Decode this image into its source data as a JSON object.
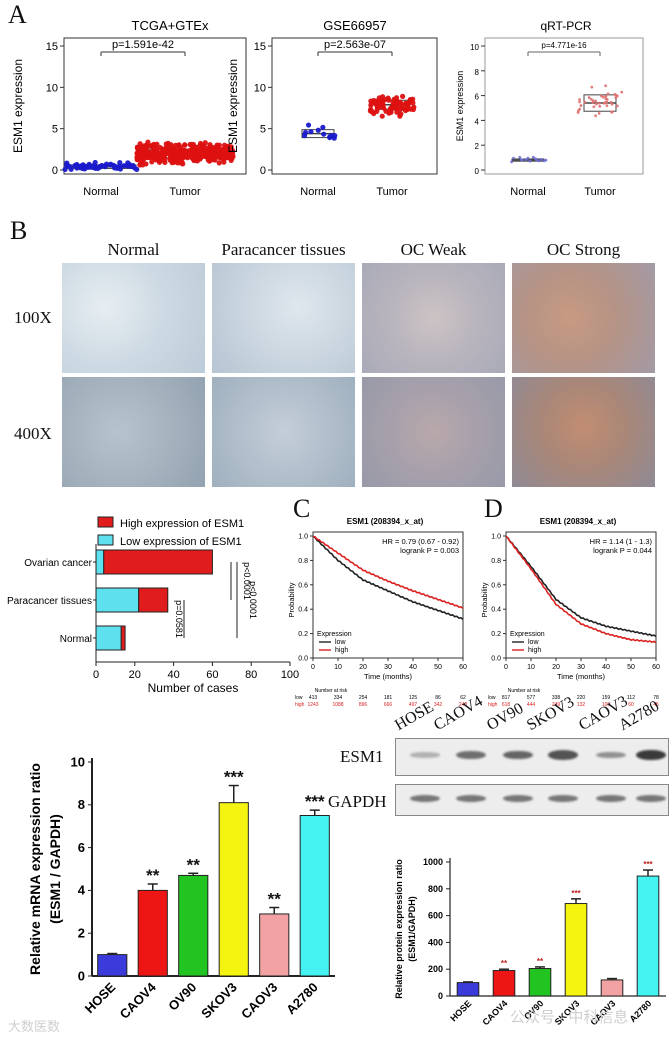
{
  "panel_letters": {
    "A": "A",
    "B": "B",
    "C": "C",
    "D": "D"
  },
  "panel_a": {
    "ylabel": "ESM1 expression",
    "plots": [
      {
        "title": "TCGA+GTEx",
        "pval": "p=1.591e-42",
        "ymax": 15,
        "ticks": [
          "0",
          "5",
          "10",
          "15"
        ],
        "groups": [
          "Normal",
          "Tumor"
        ],
        "color": "#1a1acc",
        "tumor_color": "#dd1111",
        "normal_median": 0.4,
        "tumor_median": 2.0
      },
      {
        "title": "GSE66957",
        "pval": "p=2.563e-07",
        "ymax": 15,
        "ticks": [
          "0",
          "5",
          "10",
          "15"
        ],
        "groups": [
          "Normal",
          "Tumor"
        ],
        "color": "#1a1acc",
        "tumor_color": "#dd1111",
        "normal_median": 4.4,
        "tumor_median": 7.9
      },
      {
        "title": "qRT-PCR",
        "pval": "p=4.771e-16",
        "ymax": 10,
        "ticks": [
          "0",
          "2",
          "4",
          "6",
          "8",
          "10"
        ],
        "groups": [
          "Normal",
          "Tumor"
        ],
        "color": "#6b6bd6",
        "tumor_color": "#e07070",
        "normal_median": 0.8,
        "tumor_median": 5.4
      }
    ]
  },
  "panel_b": {
    "columns": [
      "Normal",
      "Paracancer tissues",
      "OC Weak",
      "OC Strong"
    ],
    "rows": [
      "100X",
      "400X"
    ]
  },
  "chart_data": [
    {
      "type": "bar",
      "orientation": "horizontal-stacked",
      "categories": [
        "Ovarian cancer",
        "Paracancer tissues",
        "Normal"
      ],
      "series": [
        {
          "name": "Low expression of ESM1",
          "values": [
            4,
            22,
            13
          ],
          "color": "#5ee0ee"
        },
        {
          "name": "High expression of ESM1",
          "values": [
            56,
            15,
            2
          ],
          "color": "#e11c1c"
        }
      ],
      "xlabel": "Number of cases",
      "xlim": [
        0,
        100
      ],
      "xticks": [
        "0",
        "20",
        "40",
        "60",
        "80",
        "100"
      ],
      "annotations": [
        "p<0.0001",
        "p<0.0001",
        "p=0.0581"
      ]
    },
    {
      "type": "line",
      "title": "ESM1 (208394_x_at)",
      "hr": "HR = 0.79 (0.67 - 0.92)",
      "logrank": "logrank P = 0.003",
      "xlabel": "Time (months)",
      "ylabel": "Probability",
      "legend_title": "Expression",
      "series": [
        {
          "name": "low",
          "x": [
            0,
            10,
            20,
            30,
            40,
            50,
            60
          ],
          "values": [
            1.0,
            0.8,
            0.64,
            0.55,
            0.46,
            0.39,
            0.32
          ]
        },
        {
          "name": "high",
          "x": [
            0,
            10,
            20,
            30,
            40,
            50,
            60
          ],
          "values": [
            1.0,
            0.86,
            0.72,
            0.63,
            0.55,
            0.48,
            0.41
          ]
        }
      ],
      "xticks": [
        "0",
        "10",
        "20",
        "30",
        "40",
        "50",
        "60"
      ],
      "yticks": [
        "0.0",
        "0.2",
        "0.4",
        "0.6",
        "0.8",
        "1.0"
      ],
      "risk_header": "Number at risk",
      "risk_low": [
        "413",
        "334",
        "254",
        "181",
        "125",
        "86",
        "62"
      ],
      "risk_high": [
        "1243",
        "1088",
        "896",
        "666",
        "497",
        "342",
        "248"
      ]
    },
    {
      "type": "line",
      "title": "ESM1 (208394_x_at)",
      "hr": "HR = 1.14 (1 - 1.3)",
      "logrank": "logrank P = 0.044",
      "xlabel": "Time (months)",
      "ylabel": "Probability",
      "legend_title": "Expression",
      "series": [
        {
          "name": "low",
          "x": [
            0,
            10,
            20,
            30,
            40,
            50,
            60
          ],
          "values": [
            1.0,
            0.75,
            0.48,
            0.33,
            0.26,
            0.22,
            0.18
          ]
        },
        {
          "name": "high",
          "x": [
            0,
            10,
            20,
            30,
            40,
            50,
            60
          ],
          "values": [
            1.0,
            0.73,
            0.44,
            0.28,
            0.2,
            0.15,
            0.13
          ]
        }
      ],
      "xticks": [
        "0",
        "10",
        "20",
        "30",
        "40",
        "50",
        "60"
      ],
      "yticks": [
        "0.0",
        "0.2",
        "0.4",
        "0.6",
        "0.8",
        "1.0"
      ],
      "risk_header": "Number at risk",
      "risk_low": [
        "817",
        "577",
        "338",
        "220",
        "159",
        "112",
        "78"
      ],
      "risk_high": [
        "618",
        "444",
        "249",
        "132",
        "105",
        "60",
        "45"
      ]
    },
    {
      "type": "bar",
      "ylabel": "Relative mRNA expression ratio (ESM1 / GAPDH)",
      "categories": [
        "HOSE",
        "CAOV4",
        "OV90",
        "SKOV3",
        "CAOV3",
        "A2780"
      ],
      "values": [
        1.0,
        4.0,
        4.7,
        8.1,
        2.9,
        7.5
      ],
      "errors": [
        0.05,
        0.3,
        0.1,
        0.8,
        0.3,
        0.25
      ],
      "sig": [
        "",
        "**",
        "**",
        "***",
        "**",
        "***"
      ],
      "colors": [
        "#3b3bdc",
        "#ee1515",
        "#22c422",
        "#f4f410",
        "#f2a2a2",
        "#44f2f2"
      ],
      "ylim": [
        0,
        10
      ],
      "yticks": [
        "0",
        "2",
        "4",
        "6",
        "8",
        "10"
      ]
    },
    {
      "type": "bar",
      "ylabel": "Relative protein expression ratio (ESM1/GAPDH)",
      "categories": [
        "HOSE",
        "CAOV4",
        "OV90",
        "SKOV3",
        "CAOV3",
        "A2780"
      ],
      "values": [
        100,
        190,
        205,
        690,
        120,
        895
      ],
      "errors": [
        5,
        10,
        12,
        35,
        10,
        45
      ],
      "sig": [
        "",
        "**",
        "**",
        "***",
        "",
        "***"
      ],
      "colors": [
        "#3b3bdc",
        "#ee1515",
        "#22c422",
        "#f4f410",
        "#f2a2a2",
        "#44f2f2"
      ],
      "ylim": [
        0,
        1000
      ],
      "yticks": [
        "0",
        "200",
        "400",
        "600",
        "800",
        "1000"
      ]
    }
  ],
  "western_blot": {
    "lanes": [
      "HOSE",
      "CAOV4",
      "OV90",
      "SKOV3",
      "CAOV3",
      "A2780"
    ],
    "bands": [
      "ESM1",
      "GAPDH"
    ],
    "esm1_intensity": [
      0.15,
      0.55,
      0.6,
      0.7,
      0.35,
      0.85
    ]
  },
  "watermark": {
    "left": "大数医数",
    "right": "公众号 · 中科信息"
  }
}
